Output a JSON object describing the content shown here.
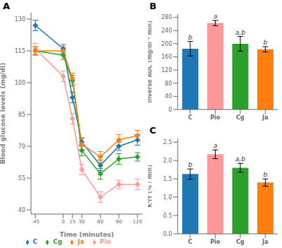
{
  "chart_data": [
    {
      "type": "line",
      "title": "A",
      "xlabel": "Time (minutes)",
      "ylabel": "Blood glucose levels (mg/dl)",
      "x": [
        -45,
        0,
        15,
        30,
        60,
        90,
        120
      ],
      "xlim": [
        -52,
        128
      ],
      "xticks": [
        -45,
        0,
        15,
        30,
        60,
        90,
        120
      ],
      "ylim": [
        38,
        133
      ],
      "yticks": [
        40,
        55,
        70,
        85,
        100,
        115,
        130
      ],
      "marker": "diamond",
      "legend": "bottom",
      "grid": false,
      "series": [
        {
          "name": "C",
          "color": "#1F77B4",
          "values": [
            127,
            116,
            93,
            72,
            61,
            70,
            73
          ],
          "errors": [
            2.5,
            2.0,
            2.5,
            2.0,
            2.5,
            2.0,
            2.5
          ]
        },
        {
          "name": "Pio",
          "color": "#FF9999",
          "values": [
            116,
            103,
            83,
            59,
            46,
            52,
            52
          ],
          "errors": [
            2.5,
            2.5,
            2.5,
            2.5,
            2.5,
            2.0,
            2.5
          ]
        },
        {
          "name": "Cg",
          "color": "#2CA02C",
          "values": [
            115,
            113,
            101,
            68,
            57,
            64,
            65
          ],
          "errors": [
            2.0,
            2.0,
            2.5,
            2.5,
            2.5,
            2.5,
            2.0
          ]
        },
        {
          "name": "Ja",
          "color": "#FF7F0E",
          "values": [
            115,
            115,
            102,
            71,
            65,
            73,
            75
          ],
          "errors": [
            2.0,
            2.0,
            2.5,
            2.5,
            2.5,
            2.5,
            2.5
          ]
        }
      ]
    },
    {
      "type": "bar",
      "title": "B",
      "ylabel": "Inverse AUC (mg/dl * min)",
      "categories": [
        "C",
        "Pio",
        "Cg",
        "Ja"
      ],
      "values": [
        185,
        263,
        200,
        183
      ],
      "errors": [
        22,
        8,
        22,
        8
      ],
      "colors": [
        "#1F77B4",
        "#FF9999",
        "#2CA02C",
        "#FF7F0E"
      ],
      "annotations": [
        "b",
        "a",
        "a,b",
        "b"
      ],
      "ylim": [
        0,
        290
      ],
      "yticks": [
        0,
        40,
        80,
        120,
        160,
        200,
        240,
        280
      ],
      "grid": false
    },
    {
      "type": "bar",
      "title": "C",
      "ylabel": "Kᴵᴛᴛ (% / min)",
      "categories": [
        "C",
        "Pio",
        "Cg",
        "Ja"
      ],
      "values": [
        1.63,
        2.17,
        1.8,
        1.4
      ],
      "errors": [
        0.14,
        0.12,
        0.12,
        0.1
      ],
      "colors": [
        "#1F77B4",
        "#FF9999",
        "#2CA02C",
        "#FF7F0E"
      ],
      "annotations": [
        "b",
        "a",
        "a,b",
        "b"
      ],
      "ylim": [
        0,
        2.6
      ],
      "yticks": [
        {
          "value": 0,
          "label": "0.0"
        },
        0.5,
        {
          "value": 1,
          "label": "1.0"
        },
        1.5,
        {
          "value": 2,
          "label": "2.0"
        },
        2.5
      ],
      "grid": false
    }
  ]
}
